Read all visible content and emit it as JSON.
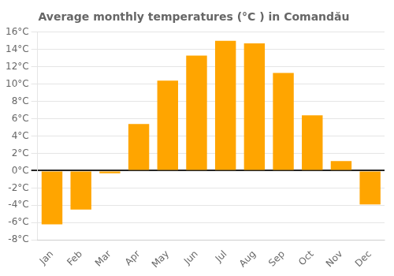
{
  "chart_data": {
    "type": "bar",
    "title": "Average monthly temperatures (°C ) in Comandău",
    "categories": [
      "Jan",
      "Feb",
      "Mar",
      "Apr",
      "May",
      "Jun",
      "Jul",
      "Aug",
      "Sep",
      "Oct",
      "Nov",
      "Dec"
    ],
    "values": [
      -6.2,
      -4.5,
      -0.3,
      5.4,
      10.4,
      13.3,
      15.0,
      14.7,
      11.3,
      6.4,
      1.1,
      -3.9
    ],
    "color": "#FFA500",
    "ylim": [
      -8,
      16
    ],
    "yticks": [
      {
        "value": -8,
        "label": "-8°C"
      },
      {
        "value": -6,
        "label": "-6°C"
      },
      {
        "value": -4,
        "label": "-4°C"
      },
      {
        "value": -2,
        "label": "-2°C"
      },
      {
        "value": 0,
        "label": "0°C"
      },
      {
        "value": 2,
        "label": "2°C"
      },
      {
        "value": 4,
        "label": "4°C"
      },
      {
        "value": 6,
        "label": "6°C"
      },
      {
        "value": 8,
        "label": "8°C"
      },
      {
        "value": 10,
        "label": "10°C"
      },
      {
        "value": 12,
        "label": "12°C"
      },
      {
        "value": 14,
        "label": "14°C"
      },
      {
        "value": 16,
        "label": "16°C"
      }
    ],
    "grid": "y"
  }
}
